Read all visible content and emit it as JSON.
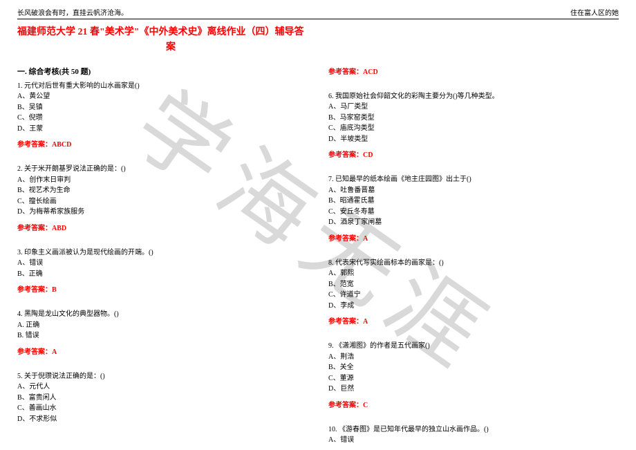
{
  "header": {
    "left": "长风破浪会有时，直挂云帆济沧海。",
    "right": "住在富人区的她"
  },
  "title_line1": "福建师范大学 21 春\"美术学\"《中外美术史》离线作业（四）辅导答",
  "title_line2": "案",
  "section_head": "一. 综合考核(共 50 题)",
  "watermark": "学海无涯",
  "left_col": {
    "q1": {
      "stem": "1. 元代对后世有重大影响的山水画家是()",
      "a": "A、黄公望",
      "b": "B、吴镇",
      "c": "C、倪瓒",
      "d": "D、王蒙",
      "ans": "参考答案：ABCD"
    },
    "q2": {
      "stem": "2. 关于米开朗基罗说法正确的是：()",
      "a": "A、创作末日审判",
      "b": "B、视艺术为生命",
      "c": "C、擅长绘画",
      "d": "D、为梅蒂希家族服务",
      "ans": "参考答案：ABD"
    },
    "q3": {
      "stem": "3. 印象主义画派被认为是现代绘画的开端。()",
      "a": "A、错误",
      "b": "B、正确",
      "ans": "参考答案：B"
    },
    "q4": {
      "stem": "4. 黑陶是龙山文化的典型器物。()",
      "a": "A. 正确",
      "b": "B. 错误",
      "ans": "参考答案：A"
    },
    "q5": {
      "stem": "5. 关于倪瓒说法正确的是：()",
      "a": "A、元代人",
      "b": "B、富贵闲人",
      "c": "C、善画山水",
      "d": "D、不求形似"
    }
  },
  "right_col": {
    "top_ans": "参考答案：ACD",
    "q6": {
      "stem": "6. 我国原始社会仰韶文化的彩陶主要分为()等几种类型。",
      "a": "A、马厂类型",
      "b": "B、马家窑类型",
      "c": "C、庙底沟类型",
      "d": "D、半坡类型",
      "ans": "参考答案：CD"
    },
    "q7": {
      "stem": "7. 已知最早的纸本绘画《地主庄园图》出土于()",
      "a": "A、吐鲁番晋墓",
      "b": "B、昭通霍氏墓",
      "c": "C、安丘冬寿墓",
      "d": "D、酒泉丁家闸墓",
      "ans": "参考答案：A"
    },
    "q8": {
      "stem": "8. 代表宋代写实绘画标本的画家是：()",
      "a": "A、郭熙",
      "b": "B、范宽",
      "c": "C、许道宁",
      "d": "D、李成",
      "ans": "参考答案：A"
    },
    "q9": {
      "stem": "9. 《潇湘图》的作者是五代画家()",
      "a": "A、荆浩",
      "b": "B、关全",
      "c": "C、董源",
      "d": "D、巨然",
      "ans": "参考答案：C"
    },
    "q10": {
      "stem": "10. 《游春图》是已知年代最早的独立山水画作品。()",
      "a": "A、错误"
    }
  }
}
